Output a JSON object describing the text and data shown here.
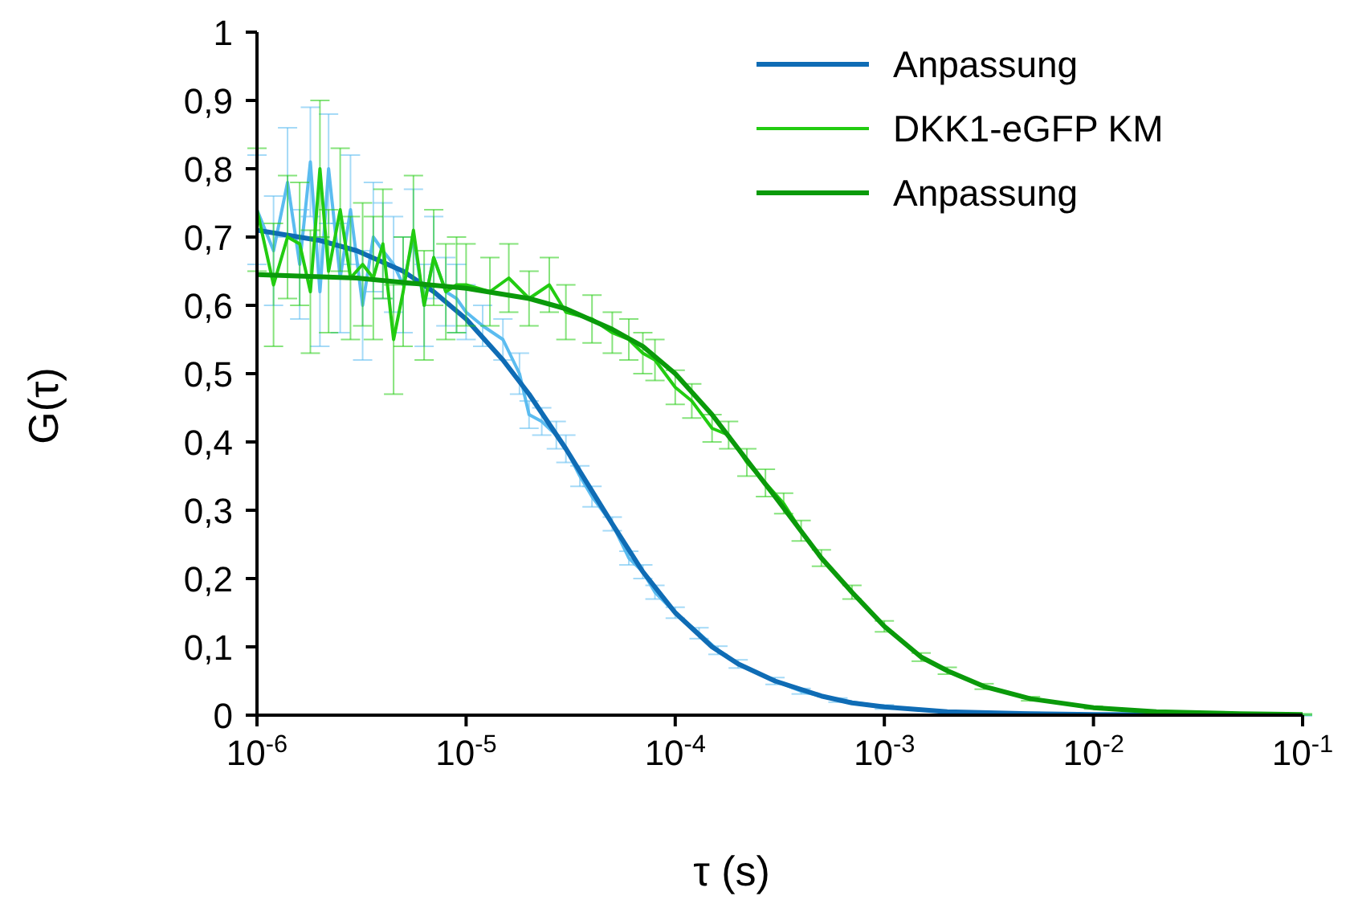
{
  "chart_data": {
    "type": "line",
    "xlabel": "τ (s)",
    "ylabel": "G(τ)",
    "log": "x",
    "xlim": [
      1e-06,
      0.1
    ],
    "ylim": [
      0,
      1
    ],
    "xticks": [
      {
        "value": 1e-06,
        "label": "10$^{-6}$"
      },
      {
        "value": 1e-05,
        "label": "10$^{-5}$"
      },
      {
        "value": 0.0001,
        "label": "10$^{-4}$"
      },
      {
        "value": 0.001,
        "label": "10$^{-3}$"
      },
      {
        "value": 0.01,
        "label": "10$^{-2}$"
      },
      {
        "value": 0.1,
        "label": "10$^{-1}$"
      }
    ],
    "yticks": [
      0,
      {
        "value": 0.1,
        "label": "0,1"
      },
      {
        "value": 0.2,
        "label": "0,2"
      },
      {
        "value": 0.3,
        "label": "0,3"
      },
      {
        "value": 0.4,
        "label": "0,4"
      },
      {
        "value": 0.5,
        "label": "0,5"
      },
      {
        "value": 0.6,
        "label": "0,6"
      },
      {
        "value": 0.7,
        "label": "0,7"
      },
      {
        "value": 0.8,
        "label": "0,8"
      },
      {
        "value": 0.9,
        "label": "0,9"
      },
      1
    ],
    "grid": false,
    "legend": "top right",
    "marker": "none",
    "line_style": "solid",
    "series": [
      {
        "color": "#5bbcf0",
        "x": [
          1e-06,
          1.2e-06,
          1.4e-06,
          1.6e-06,
          1.8e-06,
          2e-06,
          2.2e-06,
          2.5e-06,
          2.8e-06,
          3.2e-06,
          3.6e-06,
          4e-06,
          4.5e-06,
          5e-06,
          5.6e-06,
          6.3e-06,
          7e-06,
          8e-06,
          9e-06,
          1e-05,
          1.2e-05,
          1.5e-05,
          1.8e-05,
          2e-05,
          2.3e-05,
          2.7e-05,
          3e-05,
          3.5e-05,
          4e-05,
          5e-05,
          6e-05,
          7e-05,
          8e-05,
          0.0001,
          0.00013,
          0.00016,
          0.0002,
          0.0003,
          0.0004,
          0.0006,
          0.001,
          0.002,
          0.005,
          0.01,
          0.03,
          0.1
        ],
        "values": [
          0.74,
          0.68,
          0.78,
          0.66,
          0.81,
          0.62,
          0.8,
          0.64,
          0.74,
          0.6,
          0.7,
          0.68,
          0.66,
          0.63,
          0.7,
          0.6,
          0.67,
          0.62,
          0.61,
          0.59,
          0.57,
          0.55,
          0.5,
          0.44,
          0.43,
          0.41,
          0.39,
          0.35,
          0.32,
          0.28,
          0.23,
          0.21,
          0.18,
          0.15,
          0.12,
          0.095,
          0.075,
          0.05,
          0.035,
          0.022,
          0.012,
          0.005,
          0.002,
          0.001,
          0,
          0
        ],
        "errors": [
          0.08,
          0.08,
          0.08,
          0.08,
          0.08,
          0.08,
          0.08,
          0.08,
          0.08,
          0.08,
          0.08,
          0.07,
          0.07,
          0.07,
          0.07,
          0.06,
          0.06,
          0.05,
          0.05,
          0.04,
          0.03,
          0.03,
          0.03,
          0.02,
          0.02,
          0.02,
          0.02,
          0.015,
          0.015,
          0.01,
          0.01,
          0.01,
          0.01,
          0.008,
          0.008,
          0.006,
          0.006,
          0.005,
          0.004,
          0.003,
          0.003,
          0.002,
          0.002,
          0.001,
          0.001,
          0.001
        ]
      },
      {
        "name": "Anpassung",
        "color": "#0f6cb5",
        "x": [
          1e-06,
          2e-06,
          3e-06,
          5e-06,
          7e-06,
          1e-05,
          1.5e-05,
          2e-05,
          3e-05,
          5e-05,
          7e-05,
          0.0001,
          0.00015,
          0.0002,
          0.0003,
          0.0005,
          0.0007,
          0.001,
          0.002,
          0.005,
          0.01,
          0.1
        ],
        "values": [
          0.71,
          0.695,
          0.68,
          0.65,
          0.62,
          0.58,
          0.52,
          0.47,
          0.39,
          0.28,
          0.21,
          0.15,
          0.1,
          0.075,
          0.05,
          0.028,
          0.018,
          0.012,
          0.005,
          0.002,
          0.001,
          0
        ]
      },
      {
        "name": "DKK1-eGFP KM",
        "color": "#22cc11",
        "x": [
          1e-06,
          1.2e-06,
          1.4e-06,
          1.6e-06,
          1.8e-06,
          2e-06,
          2.2e-06,
          2.5e-06,
          2.8e-06,
          3.2e-06,
          3.6e-06,
          4e-06,
          4.5e-06,
          5e-06,
          5.6e-06,
          6.3e-06,
          7e-06,
          8e-06,
          9e-06,
          1e-05,
          1.3e-05,
          1.6e-05,
          2e-05,
          2.5e-05,
          3e-05,
          4e-05,
          5e-05,
          6e-05,
          7e-05,
          8e-05,
          0.0001,
          0.00012,
          0.00015,
          0.00018,
          0.00022,
          0.00027,
          0.00033,
          0.0004,
          0.0005,
          0.0007,
          0.001,
          0.0015,
          0.002,
          0.003,
          0.005,
          0.01,
          0.02,
          0.05,
          0.1
        ],
        "values": [
          0.74,
          0.63,
          0.7,
          0.69,
          0.62,
          0.8,
          0.65,
          0.74,
          0.64,
          0.66,
          0.64,
          0.69,
          0.55,
          0.62,
          0.71,
          0.6,
          0.67,
          0.62,
          0.63,
          0.63,
          0.62,
          0.64,
          0.61,
          0.63,
          0.59,
          0.58,
          0.56,
          0.55,
          0.53,
          0.52,
          0.48,
          0.46,
          0.42,
          0.41,
          0.37,
          0.34,
          0.31,
          0.27,
          0.23,
          0.18,
          0.13,
          0.085,
          0.065,
          0.042,
          0.024,
          0.011,
          0.005,
          0.002,
          0.001
        ],
        "errors": [
          0.09,
          0.09,
          0.09,
          0.09,
          0.09,
          0.1,
          0.09,
          0.09,
          0.09,
          0.09,
          0.09,
          0.08,
          0.08,
          0.08,
          0.08,
          0.08,
          0.07,
          0.07,
          0.07,
          0.06,
          0.05,
          0.05,
          0.04,
          0.04,
          0.04,
          0.035,
          0.03,
          0.03,
          0.03,
          0.03,
          0.025,
          0.025,
          0.02,
          0.02,
          0.02,
          0.02,
          0.015,
          0.015,
          0.012,
          0.01,
          0.008,
          0.006,
          0.005,
          0.004,
          0.003,
          0.002,
          0.002,
          0.001,
          0.001
        ]
      },
      {
        "name": "Anpassung",
        "color": "#0a9a0a",
        "x": [
          1e-06,
          3e-06,
          1e-05,
          2e-05,
          3e-05,
          5e-05,
          7e-05,
          0.0001,
          0.00015,
          0.0002,
          0.0003,
          0.0005,
          0.0007,
          0.001,
          0.0015,
          0.002,
          0.003,
          0.005,
          0.01,
          0.02,
          0.05,
          0.1
        ],
        "values": [
          0.645,
          0.64,
          0.625,
          0.61,
          0.595,
          0.565,
          0.54,
          0.5,
          0.44,
          0.39,
          0.32,
          0.23,
          0.18,
          0.13,
          0.085,
          0.065,
          0.042,
          0.024,
          0.011,
          0.005,
          0.002,
          0.001
        ]
      }
    ]
  }
}
